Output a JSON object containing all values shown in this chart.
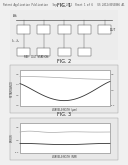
{
  "background_color": "#f0f0f0",
  "header_text": "Patent Application Publication   Sep. 13, 2012  Sheet 1 of 6   US 2012/0050866 A1",
  "fig1_label": "FIG. 1",
  "fig2_label": "FIG. 2",
  "fig3_label": "FIG. 3",
  "text_color": "#222222",
  "graph_bg": "#e8e8e8",
  "plot_bg": "#ffffff",
  "line_dark": "#333333",
  "line_gray": "#888888"
}
